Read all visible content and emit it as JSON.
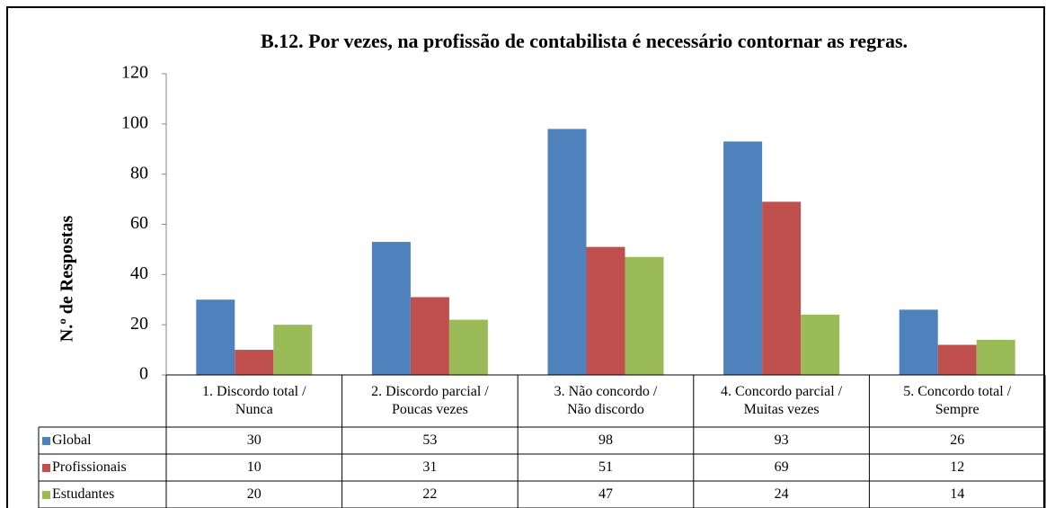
{
  "chart_data": {
    "type": "bar",
    "title": "B.12. Por vezes, na profissão de contabilista é necessário contornar as regras.",
    "y_label": "N.º de Respostas",
    "categories": [
      "1. Discordo total /\nNunca",
      "2. Discordo parcial /\nPoucas vezes",
      "3. Não concordo /\nNão discordo",
      "4. Concordo parcial /\nMuitas vezes",
      "5. Concordo total /\nSempre"
    ],
    "series": [
      {
        "name": "Global",
        "color": "#4f81bd",
        "values": [
          30,
          53,
          98,
          93,
          26
        ]
      },
      {
        "name": "Profissionais",
        "color": "#c0504d",
        "values": [
          10,
          31,
          51,
          69,
          12
        ]
      },
      {
        "name": "Estudantes",
        "color": "#9bbb59",
        "values": [
          20,
          22,
          47,
          24,
          14
        ]
      }
    ],
    "ylim": [
      0,
      120
    ],
    "yticks": [
      0,
      20,
      40,
      60,
      80,
      100,
      120
    ],
    "grid": false
  }
}
